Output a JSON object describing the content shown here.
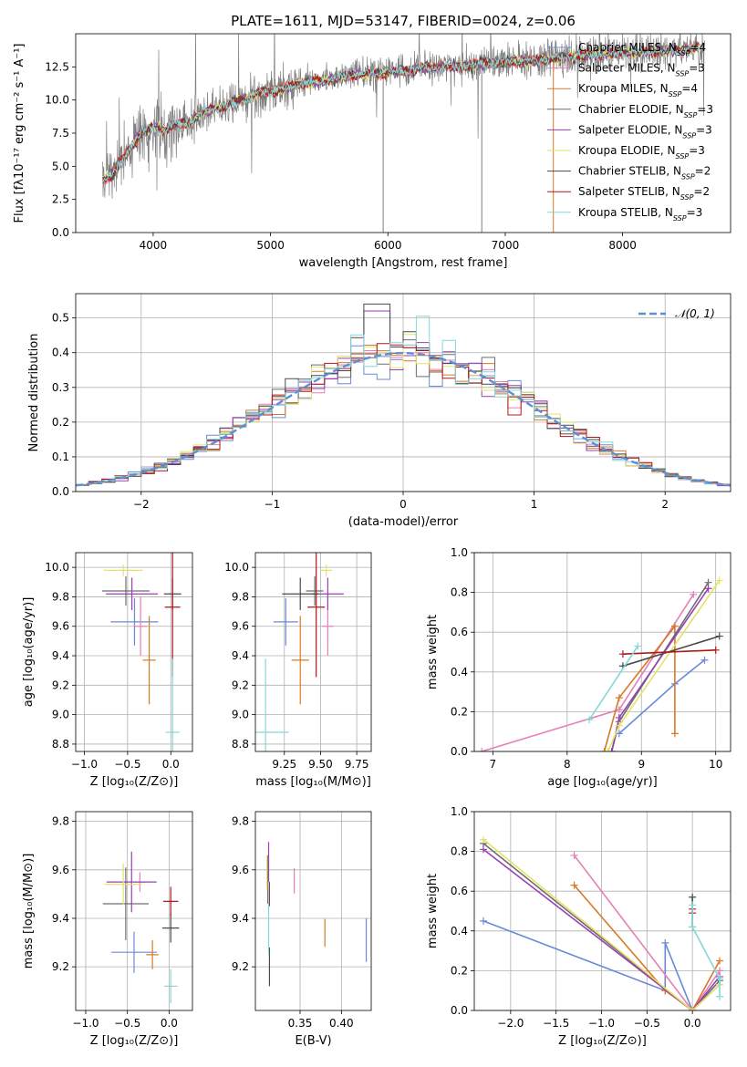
{
  "title": "PLATE=1611, MJD=53147, FIBERID=0024, z=0.06",
  "colors": {
    "Chabrier MILES": "#6a8ad8",
    "Salpeter MILES": "#e57fb6",
    "Kroupa MILES": "#d67a28",
    "Chabrier ELODIE": "#6e6e6e",
    "Salpeter ELODIE": "#9a3fb5",
    "Kroupa ELODIE": "#e3e36a",
    "Chabrier STELIB": "#4a4a4a",
    "Salpeter STELIB": "#b01818",
    "Kroupa STELIB": "#85d8d8",
    "data": "#808080",
    "normal": "#5b8fd6"
  },
  "chart_data": [
    {
      "type": "line",
      "name": "spectrum",
      "xlabel": "wavelength [Angstrom, rest frame]",
      "ylabel": "Flux [fλ10⁻¹⁷ erg cm⁻² s⁻¹ A⁻¹]",
      "xlim": [
        3340,
        8920
      ],
      "ylim": [
        0,
        15
      ],
      "xticks": [
        "4000",
        "5000",
        "6000",
        "7000",
        "8000"
      ],
      "yticks": [
        "0.0",
        "2.5",
        "5.0",
        "7.5",
        "10.0",
        "12.5"
      ],
      "legend_position": "lower right",
      "legend": [
        {
          "label": "Chabrier MILES, N",
          "sub": "SSP",
          "n": "=4"
        },
        {
          "label": "Salpeter MILES, N",
          "sub": "SSP",
          "n": "=3"
        },
        {
          "label": "Kroupa MILES, N",
          "sub": "SSP",
          "n": "=4"
        },
        {
          "label": "Chabrier ELODIE, N",
          "sub": "SSP",
          "n": "=3"
        },
        {
          "label": "Salpeter ELODIE, N",
          "sub": "SSP",
          "n": "=3"
        },
        {
          "label": "Kroupa ELODIE, N",
          "sub": "SSP",
          "n": "=3"
        },
        {
          "label": "Chabrier STELIB, N",
          "sub": "SSP",
          "n": "=2"
        },
        {
          "label": "Salpeter STELIB, N",
          "sub": "SSP",
          "n": "=2"
        },
        {
          "label": "Kroupa STELIB, N",
          "sub": "SSP",
          "n": "=3"
        }
      ],
      "model_envelope": {
        "x": [
          3600,
          3700,
          3800,
          3900,
          4000,
          4100,
          4200,
          4300,
          4400,
          4500,
          4700,
          4900,
          5100,
          5300,
          5500,
          5700,
          5900,
          6100,
          6300,
          6500,
          6700,
          6900,
          7100,
          7300,
          7500,
          7700,
          7900,
          8100,
          8300,
          8500,
          8700
        ],
        "y": [
          4.0,
          5.0,
          6.3,
          7.6,
          7.9,
          7.7,
          8.2,
          8.2,
          9.0,
          9.3,
          9.8,
          10.5,
          10.9,
          11.3,
          11.5,
          11.9,
          12.0,
          12.2,
          12.4,
          12.5,
          12.6,
          12.8,
          12.9,
          13.0,
          13.2,
          13.4,
          13.5,
          13.6,
          13.7,
          13.8,
          13.9
        ]
      }
    },
    {
      "type": "bar",
      "name": "residual histogram",
      "xlabel": "(data-model)/error",
      "ylabel": "Normed distribution",
      "xlim": [
        -2.5,
        2.5
      ],
      "ylim": [
        0,
        0.57
      ],
      "xticks": [
        "−2",
        "−1",
        "0",
        "1",
        "2"
      ],
      "yticks": [
        "0.0",
        "0.1",
        "0.2",
        "0.3",
        "0.4",
        "0.5"
      ],
      "legend_position": "upper right",
      "legend": [
        {
          "label": "𝒩(0, 1)"
        }
      ],
      "bin_width": 0.1,
      "bin_start": -2.5,
      "peak_values": {
        "Chabrier STELIB": 0.54,
        "Salpeter ELODIE": 0.52,
        "Kroupa STELIB": 0.505
      }
    },
    {
      "type": "scatter",
      "name": "age vs Z",
      "xlabel": "Z [log₁₀(Z/Z⊙)]",
      "ylabel": "age  [log₁₀(age/yr)]",
      "xlim": [
        -1.1,
        0.25
      ],
      "ylim": [
        8.75,
        10.1
      ],
      "xticks": [
        "−1.0",
        "−0.5",
        "0.0"
      ],
      "yticks": [
        "8.8",
        "9.0",
        "9.2",
        "9.4",
        "9.6",
        "9.8",
        "10.0"
      ],
      "points": [
        {
          "model": "Chabrier MILES",
          "x": -0.42,
          "y": 9.63,
          "xerr": 0.55,
          "yerr": 0.32
        },
        {
          "model": "Salpeter MILES",
          "x": -0.35,
          "y": 9.6,
          "xerr": 0.15,
          "yerr": 0.4
        },
        {
          "model": "Kroupa MILES",
          "x": -0.25,
          "y": 9.37,
          "xerr": 0.15,
          "yerr": 0.6
        },
        {
          "model": "Chabrier ELODIE",
          "x": -0.52,
          "y": 9.84,
          "xerr": 0.55,
          "yerr": 0.2
        },
        {
          "model": "Salpeter ELODIE",
          "x": -0.45,
          "y": 9.82,
          "xerr": 0.6,
          "yerr": 0.22
        },
        {
          "model": "Kroupa ELODIE",
          "x": -0.55,
          "y": 9.98,
          "xerr": 0.45,
          "yerr": 0.08
        },
        {
          "model": "Chabrier STELIB",
          "x": 0.02,
          "y": 9.82,
          "xerr": 0.2,
          "yerr": 0.22
        },
        {
          "model": "Salpeter STELIB",
          "x": 0.02,
          "y": 9.73,
          "xerr": 0.18,
          "yerr": 0.95
        },
        {
          "model": "Kroupa STELIB",
          "x": 0.02,
          "y": 8.88,
          "xerr": 0.16,
          "yerr": 1.0
        }
      ]
    },
    {
      "type": "scatter",
      "name": "age vs mass",
      "xlabel": "mass [log₁₀(M/M⊙)]",
      "ylabel": "",
      "xlim": [
        9.05,
        9.85
      ],
      "ylim": [
        8.75,
        10.1
      ],
      "xticks": [
        "9.25",
        "9.50",
        "9.75"
      ],
      "yticks": [
        "8.8",
        "9.0",
        "9.2",
        "9.4",
        "9.6",
        "9.8",
        "10.0"
      ],
      "points": [
        {
          "model": "Chabrier MILES",
          "x": 9.26,
          "y": 9.63,
          "xerr": 0.17,
          "yerr": 0.32
        },
        {
          "model": "Salpeter MILES",
          "x": 9.55,
          "y": 9.6,
          "xerr": 0.08,
          "yerr": 0.4
        },
        {
          "model": "Kroupa MILES",
          "x": 9.36,
          "y": 9.37,
          "xerr": 0.12,
          "yerr": 0.6
        },
        {
          "model": "Chabrier ELODIE",
          "x": 9.46,
          "y": 9.84,
          "xerr": 0.12,
          "yerr": 0.2
        },
        {
          "model": "Salpeter ELODIE",
          "x": 9.55,
          "y": 9.82,
          "xerr": 0.22,
          "yerr": 0.22
        },
        {
          "model": "Kroupa ELODIE",
          "x": 9.54,
          "y": 9.98,
          "xerr": 0.08,
          "yerr": 0.08
        },
        {
          "model": "Chabrier STELIB",
          "x": 9.36,
          "y": 9.82,
          "xerr": 0.25,
          "yerr": 0.22
        },
        {
          "model": "Salpeter STELIB",
          "x": 9.47,
          "y": 9.73,
          "xerr": 0.12,
          "yerr": 0.95
        },
        {
          "model": "Kroupa STELIB",
          "x": 9.12,
          "y": 8.88,
          "xerr": 0.32,
          "yerr": 1.0
        }
      ]
    },
    {
      "type": "line",
      "name": "mass weight vs age",
      "xlabel": "age  [log₁₀(age/yr)]",
      "ylabel": "mass weight",
      "xlim": [
        6.75,
        10.2
      ],
      "ylim": [
        0,
        1
      ],
      "xticks": [
        "7",
        "8",
        "9",
        "10"
      ],
      "yticks": [
        "0.0",
        "0.2",
        "0.4",
        "0.6",
        "0.8",
        "1.0"
      ],
      "series": [
        {
          "model": "Chabrier MILES",
          "x": [
            8.7,
            9.45,
            9.85
          ],
          "y": [
            0.09,
            0.34,
            0.46
          ]
        },
        {
          "model": "Salpeter MILES",
          "x": [
            6.85,
            8.7,
            9.7
          ],
          "y": [
            0.0,
            0.21,
            0.79
          ]
        },
        {
          "model": "Kroupa MILES",
          "x": [
            8.5,
            8.7,
            9.45,
            9.45
          ],
          "y": [
            0.0,
            0.27,
            0.63,
            0.09
          ]
        },
        {
          "model": "Chabrier ELODIE",
          "x": [
            8.6,
            8.7,
            9.9
          ],
          "y": [
            0.0,
            0.15,
            0.85
          ]
        },
        {
          "model": "Salpeter ELODIE",
          "x": [
            8.6,
            8.7,
            9.9
          ],
          "y": [
            0.0,
            0.17,
            0.82
          ]
        },
        {
          "model": "Kroupa ELODIE",
          "x": [
            8.55,
            8.7,
            10.05
          ],
          "y": [
            0.0,
            0.13,
            0.86
          ]
        },
        {
          "model": "Chabrier STELIB",
          "x": [
            8.75,
            10.05
          ],
          "y": [
            0.43,
            0.58
          ]
        },
        {
          "model": "Salpeter STELIB",
          "x": [
            8.75,
            10.0
          ],
          "y": [
            0.49,
            0.51
          ]
        },
        {
          "model": "Kroupa STELIB",
          "x": [
            8.3,
            8.95
          ],
          "y": [
            0.16,
            0.53
          ]
        }
      ]
    },
    {
      "type": "scatter",
      "name": "mass vs Z",
      "xlabel": "Z [log₁₀(Z/Z⊙)]",
      "ylabel": "mass [log₁₀(M/M⊙)]",
      "xlim": [
        -1.12,
        0.28
      ],
      "ylim": [
        9.02,
        9.84
      ],
      "xticks": [
        "−1.0",
        "−0.5",
        "0.0"
      ],
      "yticks": [
        "9.2",
        "9.4",
        "9.6",
        "9.8"
      ],
      "points": [
        {
          "model": "Chabrier MILES",
          "x": -0.42,
          "y": 9.26,
          "xerr": 0.55,
          "yerr": 0.17
        },
        {
          "model": "Salpeter MILES",
          "x": -0.35,
          "y": 9.55,
          "xerr": 0.15,
          "yerr": 0.08
        },
        {
          "model": "Kroupa MILES",
          "x": -0.2,
          "y": 9.25,
          "xerr": 0.15,
          "yerr": 0.12
        },
        {
          "model": "Chabrier ELODIE",
          "x": -0.52,
          "y": 9.46,
          "xerr": 0.55,
          "yerr": 0.3
        },
        {
          "model": "Salpeter ELODIE",
          "x": -0.45,
          "y": 9.55,
          "xerr": 0.6,
          "yerr": 0.25
        },
        {
          "model": "Kroupa ELODIE",
          "x": -0.55,
          "y": 9.54,
          "xerr": 0.45,
          "yerr": 0.17
        },
        {
          "model": "Chabrier STELIB",
          "x": 0.02,
          "y": 9.36,
          "xerr": 0.2,
          "yerr": 0.12
        },
        {
          "model": "Salpeter STELIB",
          "x": 0.02,
          "y": 9.47,
          "xerr": 0.18,
          "yerr": 0.12
        },
        {
          "model": "Kroupa STELIB",
          "x": 0.02,
          "y": 9.12,
          "xerr": 0.16,
          "yerr": 0.14
        }
      ]
    },
    {
      "type": "scatter",
      "name": "mass vs E(B-V)",
      "xlabel": "E(B-V)",
      "ylabel": "",
      "xlim": [
        0.296,
        0.436
      ],
      "ylim": [
        9.02,
        9.84
      ],
      "xticks": [
        "0.35",
        "0.40"
      ],
      "yticks": [
        "9.2",
        "9.4",
        "9.6",
        "9.8"
      ],
      "points": [
        {
          "model": "Chabrier MILES",
          "x": 0.43,
          "y": 9.31,
          "yerr": 0.18
        },
        {
          "model": "Salpeter MILES",
          "x": 0.343,
          "y": 9.555,
          "yerr": 0.105
        },
        {
          "model": "Kroupa MILES",
          "x": 0.38,
          "y": 9.34,
          "yerr": 0.115
        },
        {
          "model": "Chabrier ELODIE",
          "x": 0.311,
          "y": 9.56,
          "yerr": 0.2
        },
        {
          "model": "Salpeter ELODIE",
          "x": 0.312,
          "y": 9.63,
          "yerr": 0.17
        },
        {
          "model": "Kroupa ELODIE",
          "x": 0.31,
          "y": 9.59,
          "yerr": 0.14
        },
        {
          "model": "Chabrier STELIB",
          "x": 0.313,
          "y": 9.2,
          "yerr": 0.16
        },
        {
          "model": "Salpeter STELIB",
          "x": 0.313,
          "y": 9.5,
          "yerr": 0.1
        },
        {
          "model": "Kroupa STELIB",
          "x": 0.312,
          "y": 9.4,
          "yerr": 0.3
        }
      ]
    },
    {
      "type": "line",
      "name": "mass weight vs Z",
      "xlabel": "Z [log₁₀(Z/Z⊙)]",
      "ylabel": "mass weight",
      "xlim": [
        -2.4,
        0.42
      ],
      "ylim": [
        0,
        1
      ],
      "xticks": [
        "−2.0",
        "−1.5",
        "−1.0",
        "−0.5",
        "0.0"
      ],
      "yticks": [
        "0.0",
        "0.2",
        "0.4",
        "0.6",
        "0.8",
        "1.0"
      ],
      "series": [
        {
          "model": "Chabrier MILES",
          "x": [
            -2.3,
            -0.3,
            -0.3,
            0.0,
            0.3
          ],
          "y": [
            0.45,
            0.1,
            0.34,
            0.0,
            0.13
          ]
        },
        {
          "model": "Salpeter MILES",
          "x": [
            -1.3,
            0.0,
            0.3
          ],
          "y": [
            0.78,
            0.0,
            0.2
          ]
        },
        {
          "model": "Kroupa MILES",
          "x": [
            -1.3,
            -0.3,
            0.0,
            0.3
          ],
          "y": [
            0.63,
            0.1,
            0.0,
            0.25
          ]
        },
        {
          "model": "Chabrier ELODIE",
          "x": [
            -2.3,
            0.0,
            0.3
          ],
          "y": [
            0.84,
            0.0,
            0.15
          ]
        },
        {
          "model": "Salpeter ELODIE",
          "x": [
            -2.3,
            0.0,
            0.3
          ],
          "y": [
            0.81,
            0.0,
            0.17
          ]
        },
        {
          "model": "Kroupa ELODIE",
          "x": [
            -2.3,
            0.0,
            0.3
          ],
          "y": [
            0.86,
            0.0,
            0.13
          ]
        },
        {
          "model": "Chabrier STELIB",
          "x": [
            0.0,
            0.0
          ],
          "y": [
            0.57,
            0.42
          ]
        },
        {
          "model": "Salpeter STELIB",
          "x": [
            0.0,
            0.0
          ],
          "y": [
            0.51,
            0.49
          ]
        },
        {
          "model": "Kroupa STELIB",
          "x": [
            0.0,
            0.0,
            0.3,
            0.3
          ],
          "y": [
            0.53,
            0.42,
            0.16,
            0.07
          ]
        }
      ]
    }
  ]
}
